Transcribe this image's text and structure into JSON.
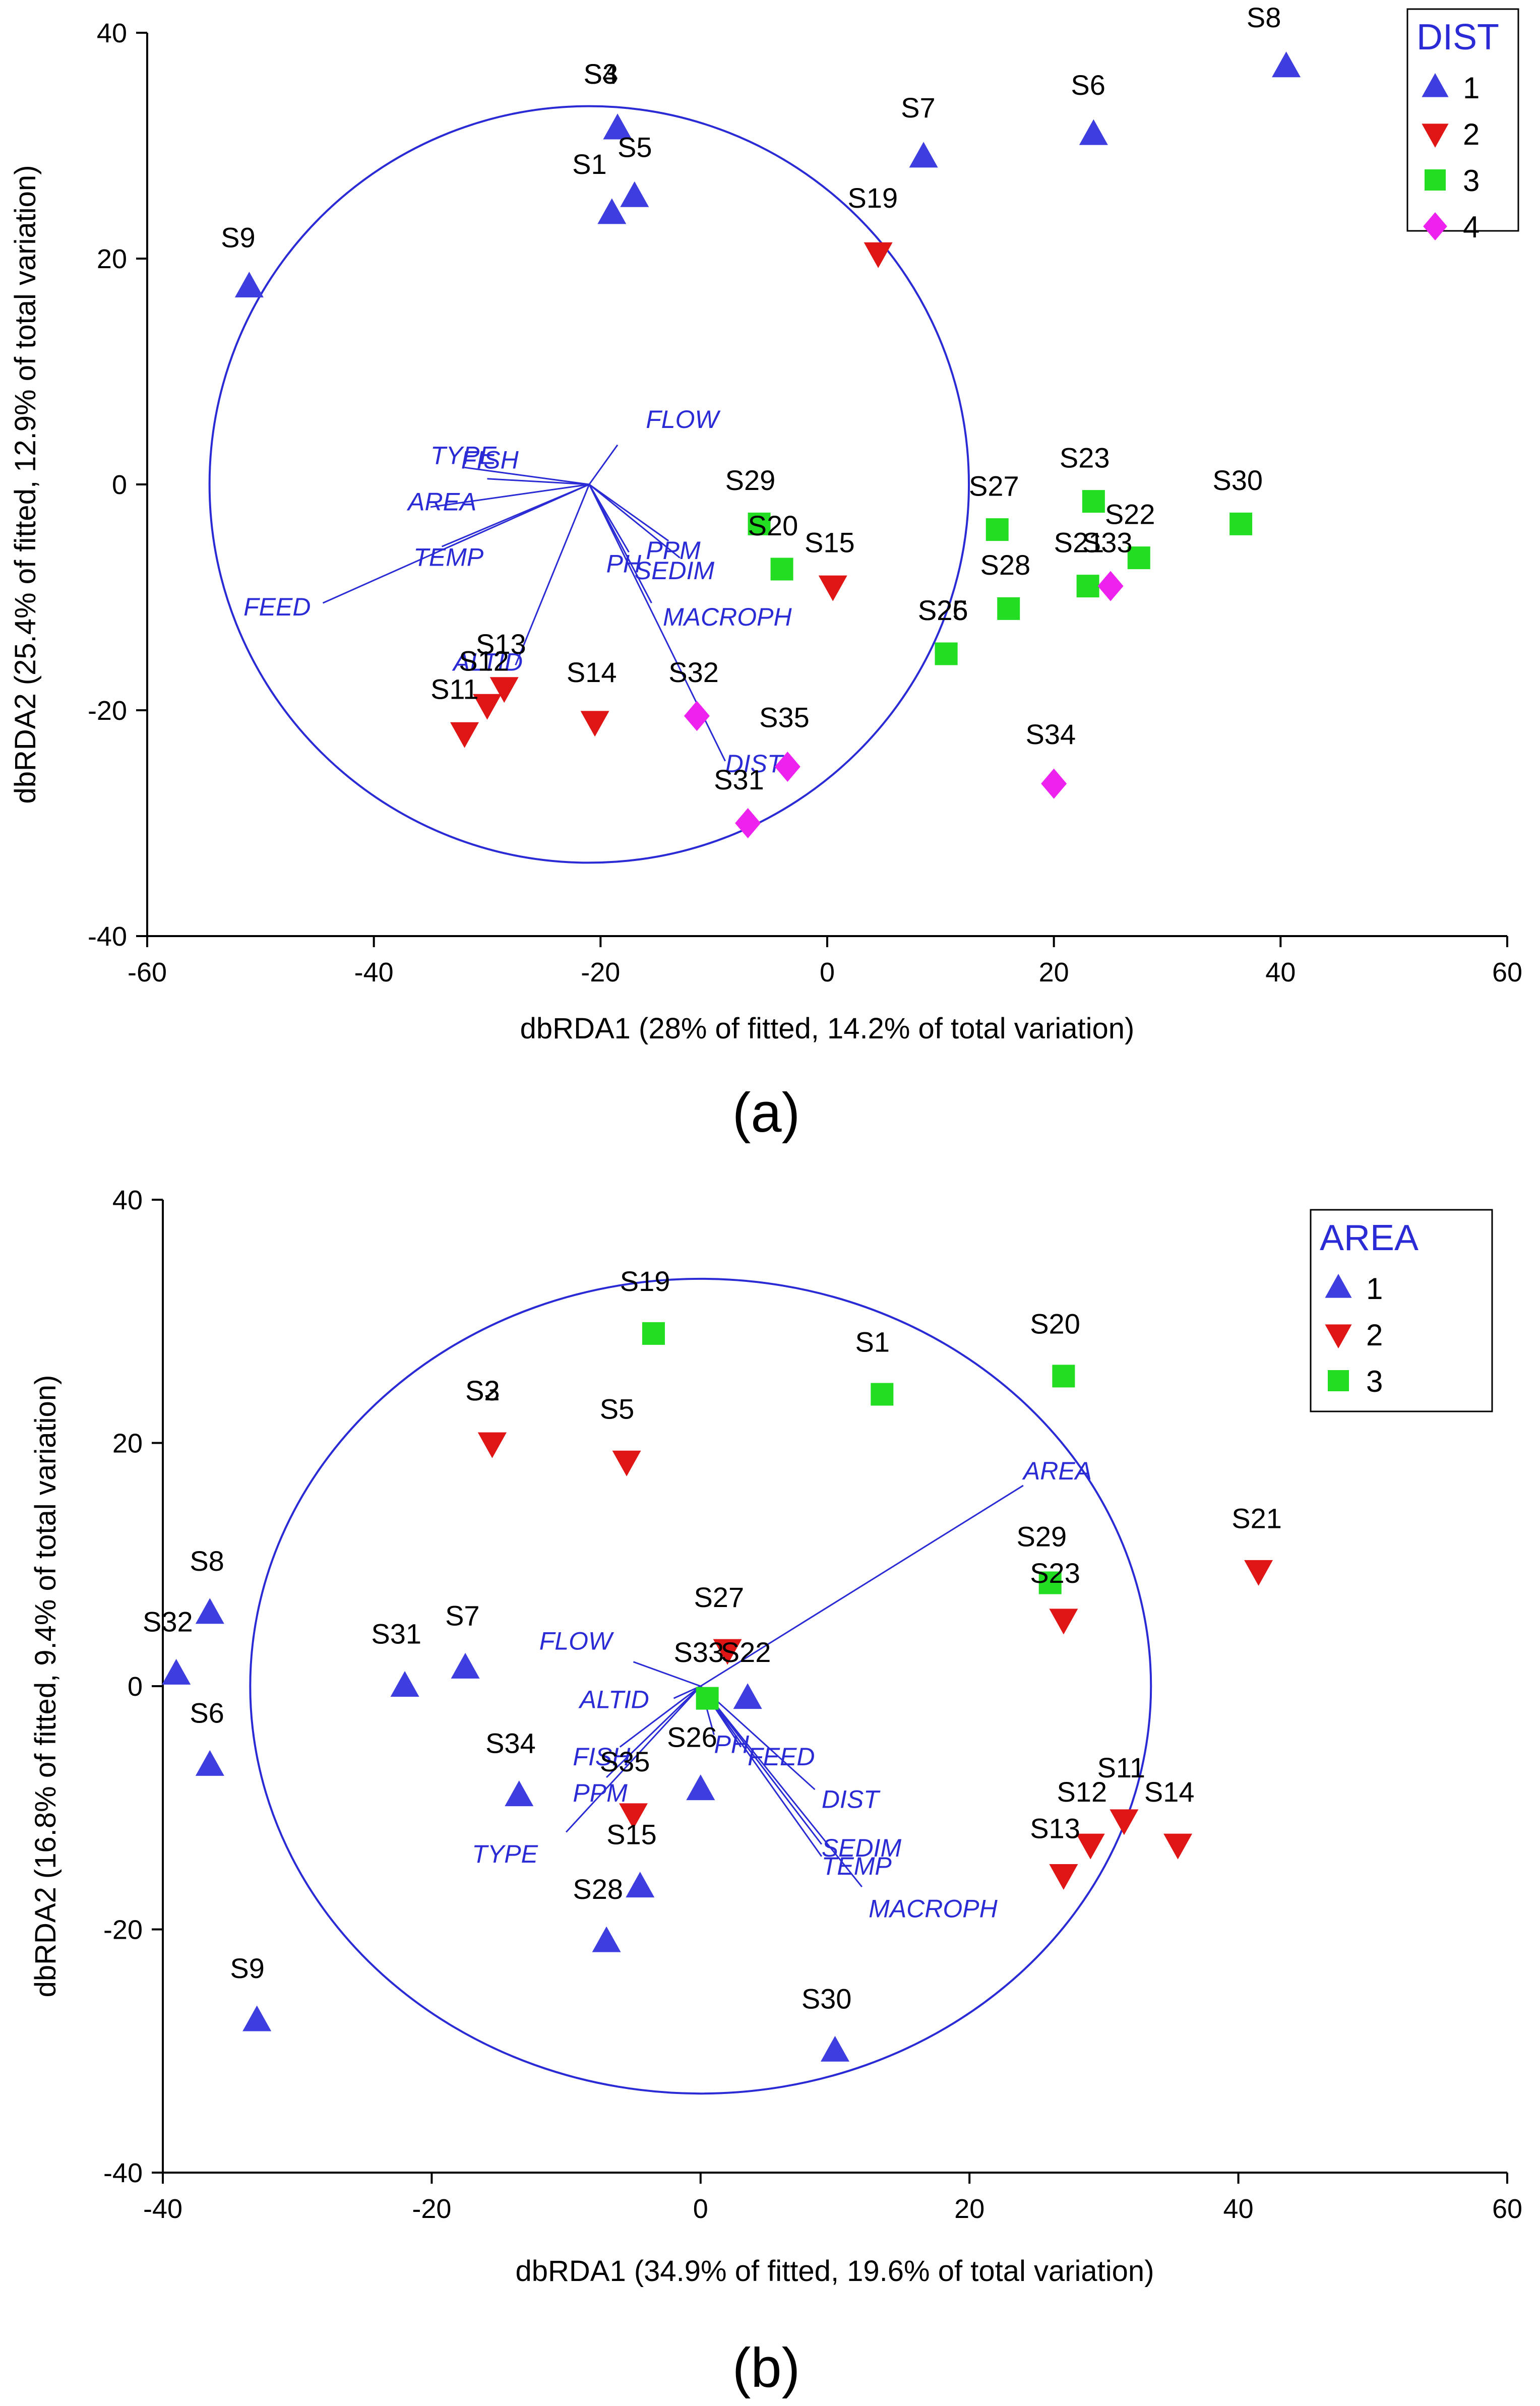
{
  "chart_data": [
    {
      "type": "scatter",
      "panel_label": "(a)",
      "xlabel": "dbRDA1 (28% of fitted, 14.2% of total variation)",
      "ylabel": "dbRDA2 (25.4% of fitted, 12.9% of total variation)",
      "xlim": [
        -60,
        60
      ],
      "ylim": [
        -40,
        40
      ],
      "xticks": [
        -60,
        -40,
        -20,
        0,
        20,
        40,
        60
      ],
      "yticks": [
        -40,
        -20,
        0,
        20,
        40
      ],
      "legend": {
        "title": "DIST",
        "items": [
          "1",
          "2",
          "3",
          "4"
        ],
        "position": "top-right"
      },
      "groups": {
        "1": {
          "color": "#3d3de0",
          "marker": "triangle-up"
        },
        "2": {
          "color": "#e01515",
          "marker": "triangle-down"
        },
        "3": {
          "color": "#22dd22",
          "marker": "square"
        },
        "4": {
          "color": "#ee22ee",
          "marker": "diamond"
        }
      },
      "circle": {
        "cx": -21,
        "cy": 0,
        "r": 33.5
      },
      "vector_origin": [
        -21,
        0
      ],
      "vectors": [
        {
          "label": "FLOW",
          "x": -18.5,
          "y": 3.5
        },
        {
          "label": "TYPE",
          "x": -32,
          "y": 1.5
        },
        {
          "label": "FISH",
          "x": -30,
          "y": 0.5
        },
        {
          "label": "AREA",
          "x": -35,
          "y": -2
        },
        {
          "label": "TEMP",
          "x": -34,
          "y": -5.5
        },
        {
          "label": "FEED",
          "x": -44.5,
          "y": -10.5
        },
        {
          "label": "PPM",
          "x": -14,
          "y": -5
        },
        {
          "label": "PH",
          "x": -17.5,
          "y": -6
        },
        {
          "label": "SEDIM",
          "x": -13,
          "y": -6.5
        },
        {
          "label": "MACROPH",
          "x": -15.5,
          "y": -10.5
        },
        {
          "label": "ALTID",
          "x": -27.5,
          "y": -16
        },
        {
          "label": "DIST",
          "x": -9,
          "y": -24.5
        }
      ],
      "vector_labels": [
        {
          "text": "FLOW",
          "x": -16,
          "y": 5
        },
        {
          "text": "TYPE",
          "x": -35,
          "y": 1.8
        },
        {
          "text": "FISH",
          "x": -32.3,
          "y": 1.4
        },
        {
          "text": "AREA",
          "x": -37,
          "y": -2.3
        },
        {
          "text": "TEMP",
          "x": -36.5,
          "y": -7.2
        },
        {
          "text": "FEED",
          "x": -51.5,
          "y": -11.6
        },
        {
          "text": "PPM",
          "x": -16,
          "y": -6.6
        },
        {
          "text": "PH",
          "x": -19.5,
          "y": -7.8
        },
        {
          "text": "SEDIM",
          "x": -17,
          "y": -8.4
        },
        {
          "text": "MACROPH",
          "x": -14.5,
          "y": -12.5
        },
        {
          "text": "ALTID",
          "x": -33,
          "y": -16.5
        },
        {
          "text": "DIST",
          "x": -9,
          "y": -25.5
        }
      ],
      "points": [
        {
          "label": "S8",
          "x": 40.5,
          "y": 37,
          "group": "1",
          "lx": 37,
          "ly": 40.5
        },
        {
          "label": "S4",
          "x": -18.5,
          "y": 31.5,
          "group": "1",
          "lx": -21.5,
          "ly": 35.5
        },
        {
          "label": "S3",
          "x": -18.5,
          "y": 31.5,
          "group": "1",
          "lx": -21.5,
          "ly": 35.5
        },
        {
          "label": "S7",
          "x": 8.5,
          "y": 29,
          "group": "1",
          "lx": 6.5,
          "ly": 32.5
        },
        {
          "label": "S6",
          "x": 23.5,
          "y": 31,
          "group": "1",
          "lx": 21.5,
          "ly": 34.5
        },
        {
          "label": "S5",
          "x": -17,
          "y": 25.5,
          "group": "1",
          "lx": -18.5,
          "ly": 29
        },
        {
          "label": "S1",
          "x": -19,
          "y": 24,
          "group": "1",
          "lx": -22.5,
          "ly": 27.5
        },
        {
          "label": "S19",
          "x": 4.5,
          "y": 20.5,
          "group": "2",
          "lx": 1.8,
          "ly": 24.5
        },
        {
          "label": "S9",
          "x": -51,
          "y": 17.5,
          "group": "1",
          "lx": -53.5,
          "ly": 21
        },
        {
          "label": "S23",
          "x": 23.5,
          "y": -1.5,
          "group": "3",
          "lx": 20.5,
          "ly": 1.5
        },
        {
          "label": "S30",
          "x": 36.5,
          "y": -3.5,
          "group": "3",
          "lx": 34,
          "ly": -0.5
        },
        {
          "label": "S29",
          "x": -6,
          "y": -3.5,
          "group": "3",
          "lx": -9,
          "ly": -0.5
        },
        {
          "label": "S27",
          "x": 15,
          "y": -4,
          "group": "3",
          "lx": 12.5,
          "ly": -1
        },
        {
          "label": "S22",
          "x": 27.5,
          "y": -6.5,
          "group": "3",
          "lx": 24.5,
          "ly": -3.5
        },
        {
          "label": "S20",
          "x": -4,
          "y": -7.5,
          "group": "3",
          "lx": -7,
          "ly": -4.5
        },
        {
          "label": "S15",
          "x": 0.5,
          "y": -9,
          "group": "2",
          "lx": -2,
          "ly": -6
        },
        {
          "label": "S21",
          "x": 23,
          "y": -9,
          "group": "3",
          "lx": 20,
          "ly": -6
        },
        {
          "label": "S33",
          "x": 25,
          "y": -9,
          "group": "4",
          "lx": 22.5,
          "ly": -6
        },
        {
          "label": "S28",
          "x": 16,
          "y": -11,
          "group": "3",
          "lx": 13.5,
          "ly": -8
        },
        {
          "label": "S26",
          "x": 10.5,
          "y": -15,
          "group": "3",
          "lx": 8,
          "ly": -12
        },
        {
          "label": "S25",
          "x": 10.5,
          "y": -15,
          "group": "3",
          "lx": 8,
          "ly": -12
        },
        {
          "label": "S13",
          "x": -28.5,
          "y": -18,
          "group": "2",
          "lx": -31,
          "ly": -15
        },
        {
          "label": "S12",
          "x": -30,
          "y": -19.5,
          "group": "2",
          "lx": -32.5,
          "ly": -16.5
        },
        {
          "label": "S14",
          "x": -20.5,
          "y": -21,
          "group": "2",
          "lx": -23,
          "ly": -17.5
        },
        {
          "label": "S11",
          "x": -32,
          "y": -22,
          "group": "2",
          "lx": -35,
          "ly": -19
        },
        {
          "label": "S32",
          "x": -11.5,
          "y": -20.5,
          "group": "4",
          "lx": -14,
          "ly": -17.5
        },
        {
          "label": "S35",
          "x": -3.5,
          "y": -25,
          "group": "4",
          "lx": -6,
          "ly": -21.5
        },
        {
          "label": "S34",
          "x": 20,
          "y": -26.5,
          "group": "4",
          "lx": 17.5,
          "ly": -23
        },
        {
          "label": "S31",
          "x": -7,
          "y": -30,
          "group": "4",
          "lx": -10,
          "ly": -27
        }
      ]
    },
    {
      "type": "scatter",
      "panel_label": "(b)",
      "xlabel": "dbRDA1 (34.9% of fitted, 19.6% of total variation)",
      "ylabel": "dbRDA2 (16.8% of fitted, 9.4% of total variation)",
      "xlim": [
        -40,
        60
      ],
      "ylim": [
        -40,
        40
      ],
      "xticks": [
        -40,
        -20,
        0,
        20,
        40,
        60
      ],
      "yticks": [
        -40,
        -20,
        0,
        20,
        40
      ],
      "legend": {
        "title": "AREA",
        "items": [
          "1",
          "2",
          "3"
        ],
        "position": "top-right"
      },
      "groups": {
        "1": {
          "color": "#3d3de0",
          "marker": "triangle-up"
        },
        "2": {
          "color": "#e01515",
          "marker": "triangle-down"
        },
        "3": {
          "color": "#22dd22",
          "marker": "square"
        }
      },
      "circle": {
        "cx": 0,
        "cy": 0,
        "r": 33.5
      },
      "vector_origin": [
        0,
        0
      ],
      "vectors": [
        {
          "label": "AREA",
          "x": 24,
          "y": 16.5
        },
        {
          "label": "FLOW",
          "x": -5,
          "y": 2
        },
        {
          "label": "ALTID",
          "x": -2,
          "y": -1
        },
        {
          "label": "PH",
          "x": 1,
          "y": -4
        },
        {
          "label": "FEED",
          "x": 3,
          "y": -5
        },
        {
          "label": "DIST",
          "x": 8.5,
          "y": -8.5
        },
        {
          "label": "SEDIM",
          "x": 9,
          "y": -13
        },
        {
          "label": "TEMP",
          "x": 9,
          "y": -14
        },
        {
          "label": "MACROPH",
          "x": 12,
          "y": -16.5
        },
        {
          "label": "FISH",
          "x": -6,
          "y": -5
        },
        {
          "label": "PPM",
          "x": -7,
          "y": -7.5
        },
        {
          "label": "TYPE",
          "x": -10,
          "y": -12
        }
      ],
      "vector_labels": [
        {
          "text": "AREA",
          "x": 24,
          "y": 17
        },
        {
          "text": "FLOW",
          "x": -12,
          "y": 3
        },
        {
          "text": "ALTID",
          "x": -9,
          "y": -1.8
        },
        {
          "text": "PH",
          "x": 1,
          "y": -5.5
        },
        {
          "text": "FEED",
          "x": 3.5,
          "y": -6.5
        },
        {
          "text": "DIST",
          "x": 9,
          "y": -10
        },
        {
          "text": "SEDIM",
          "x": 9,
          "y": -14
        },
        {
          "text": "TEMP",
          "x": 9,
          "y": -15.5
        },
        {
          "text": "MACROPH",
          "x": 12.5,
          "y": -19
        },
        {
          "text": "FISH",
          "x": -9.5,
          "y": -6.5
        },
        {
          "text": "PPM",
          "x": -9.5,
          "y": -9.5
        },
        {
          "text": "TYPE",
          "x": -17,
          "y": -14.5
        }
      ],
      "points": [
        {
          "label": "S19",
          "x": -3.5,
          "y": 29,
          "group": "3",
          "lx": -6,
          "ly": 32.5
        },
        {
          "label": "S20",
          "x": 27,
          "y": 25.5,
          "group": "3",
          "lx": 24.5,
          "ly": 29
        },
        {
          "label": "S1",
          "x": 13.5,
          "y": 24,
          "group": "3",
          "lx": 11.5,
          "ly": 27.5
        },
        {
          "label": "S2",
          "x": -15.5,
          "y": 20,
          "group": "2",
          "lx": -17.5,
          "ly": 23.5
        },
        {
          "label": "S3",
          "x": -15.5,
          "y": 20,
          "group": "2",
          "lx": -17.5,
          "ly": 23.5
        },
        {
          "label": "S5",
          "x": -5.5,
          "y": 18.5,
          "group": "2",
          "lx": -7.5,
          "ly": 22
        },
        {
          "label": "S21",
          "x": 41.5,
          "y": 9.5,
          "group": "2",
          "lx": 39.5,
          "ly": 13
        },
        {
          "label": "S29",
          "x": 26,
          "y": 8.5,
          "group": "3",
          "lx": 23.5,
          "ly": 11.5
        },
        {
          "label": "S23",
          "x": 27,
          "y": 5.5,
          "group": "2",
          "lx": 24.5,
          "ly": 8.5
        },
        {
          "label": "S8",
          "x": -36.5,
          "y": 6,
          "group": "1",
          "lx": -38,
          "ly": 9.5
        },
        {
          "label": "S27",
          "x": 2,
          "y": 3,
          "group": "2",
          "lx": -0.5,
          "ly": 6.5
        },
        {
          "label": "S7",
          "x": -17.5,
          "y": 1.5,
          "group": "1",
          "lx": -19,
          "ly": 5
        },
        {
          "label": "S32",
          "x": -39,
          "y": 1,
          "group": "1",
          "lx": -41.5,
          "ly": 4.5
        },
        {
          "label": "S31",
          "x": -22,
          "y": 0,
          "group": "1",
          "lx": -24.5,
          "ly": 3.5
        },
        {
          "label": "S33",
          "x": 0.5,
          "y": -1,
          "group": "3",
          "lx": -2,
          "ly": 2
        },
        {
          "label": "S22",
          "x": 3.5,
          "y": -1,
          "group": "1",
          "lx": 1.5,
          "ly": 2
        },
        {
          "label": "S6",
          "x": -36.5,
          "y": -6.5,
          "group": "1",
          "lx": -38,
          "ly": -3
        },
        {
          "label": "S26",
          "x": 0,
          "y": -8.5,
          "group": "1",
          "lx": -2.5,
          "ly": -5
        },
        {
          "label": "S34",
          "x": -13.5,
          "y": -9,
          "group": "1",
          "lx": -16,
          "ly": -5.5
        },
        {
          "label": "S35",
          "x": -5,
          "y": -10.5,
          "group": "2",
          "lx": -7.5,
          "ly": -7
        },
        {
          "label": "S11",
          "x": 31.5,
          "y": -11,
          "group": "2",
          "lx": 29.5,
          "ly": -7.5
        },
        {
          "label": "S12",
          "x": 29,
          "y": -13,
          "group": "2",
          "lx": 26.5,
          "ly": -9.5
        },
        {
          "label": "S14",
          "x": 35.5,
          "y": -13,
          "group": "2",
          "lx": 33,
          "ly": -9.5
        },
        {
          "label": "S13",
          "x": 27,
          "y": -15.5,
          "group": "2",
          "lx": 24.5,
          "ly": -12.5
        },
        {
          "label": "S15",
          "x": -4.5,
          "y": -16.5,
          "group": "1",
          "lx": -7,
          "ly": -13
        },
        {
          "label": "S28",
          "x": -7,
          "y": -21,
          "group": "1",
          "lx": -9.5,
          "ly": -17.5
        },
        {
          "label": "S9",
          "x": -33,
          "y": -27.5,
          "group": "1",
          "lx": -35,
          "ly": -24
        },
        {
          "label": "S30",
          "x": 10,
          "y": -30,
          "group": "1",
          "lx": 7.5,
          "ly": -26.5
        }
      ]
    }
  ]
}
